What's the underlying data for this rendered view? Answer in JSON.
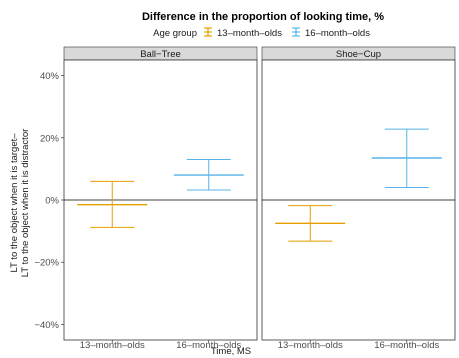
{
  "chart_data": {
    "type": "errorbar",
    "title": "Difference in the proportion of looking time, %",
    "xlabel": "Time, MS",
    "ylabel_lines": [
      "LT to the object when it is target–",
      "LT to the object when it is distractor"
    ],
    "legend": {
      "title": "Age group",
      "placement": "top",
      "entries": [
        {
          "label": "13–month–olds",
          "color": "#E69F00"
        },
        {
          "label": "16–month–olds",
          "color": "#56B4E9"
        }
      ]
    },
    "ylim": [
      -45,
      45
    ],
    "yticks": [
      -40,
      -20,
      0,
      20,
      40
    ],
    "ytick_labels": [
      "−40%",
      "−20%",
      "0%",
      "20%",
      "40%"
    ],
    "categories": [
      "13–month–olds",
      "16–month–olds"
    ],
    "grid": false,
    "zero_line": true,
    "facets": [
      {
        "label": "Ball−Tree",
        "points": [
          {
            "group": "13–month–olds",
            "mean": -1.5,
            "lower": -8.8,
            "upper": 6.0
          },
          {
            "group": "16–month–olds",
            "mean": 8.0,
            "lower": 3.2,
            "upper": 13.0
          }
        ]
      },
      {
        "label": "Shoe−Cup",
        "points": [
          {
            "group": "13–month–olds",
            "mean": -7.5,
            "lower": -13.2,
            "upper": -1.8
          },
          {
            "group": "16–month–olds",
            "mean": 13.5,
            "lower": 4.0,
            "upper": 22.8
          }
        ]
      }
    ]
  }
}
